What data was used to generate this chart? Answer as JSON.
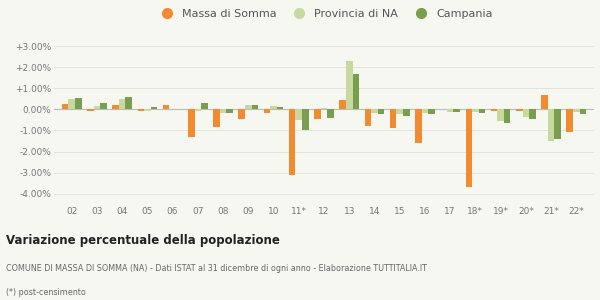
{
  "categories": [
    "02",
    "03",
    "04",
    "05",
    "06",
    "07",
    "08",
    "09",
    "10",
    "11*",
    "12",
    "13",
    "14",
    "15",
    "16",
    "17",
    "18*",
    "19*",
    "20*",
    "21*",
    "22*"
  ],
  "massa": [
    0.25,
    -0.05,
    0.2,
    -0.05,
    0.2,
    -1.3,
    -0.85,
    -0.45,
    -0.15,
    -3.1,
    -0.45,
    0.45,
    -0.8,
    -0.9,
    -1.6,
    0.0,
    -3.7,
    -0.05,
    -0.05,
    0.7,
    -1.05
  ],
  "provincia": [
    0.5,
    0.15,
    0.5,
    -0.05,
    0.0,
    -0.05,
    -0.15,
    0.2,
    0.15,
    -0.5,
    0.05,
    2.3,
    -0.15,
    -0.2,
    -0.15,
    -0.1,
    -0.1,
    -0.55,
    -0.35,
    -1.5,
    -0.1
  ],
  "campania": [
    0.55,
    0.3,
    0.6,
    0.1,
    0.0,
    0.3,
    -0.15,
    0.2,
    0.1,
    -1.0,
    -0.4,
    1.7,
    -0.2,
    -0.3,
    -0.2,
    -0.1,
    -0.15,
    -0.65,
    -0.45,
    -1.4,
    -0.2
  ],
  "color_massa": "#f28b30",
  "color_provincia": "#c8d9a0",
  "color_campania": "#7a9e50",
  "title": "Variazione percentuale della popolazione",
  "subtitle": "COMUNE DI MASSA DI SOMMA (NA) - Dati ISTAT al 31 dicembre di ogni anno - Elaborazione TUTTITALIA.IT",
  "footnote": "(*) post-censimento",
  "legend_labels": [
    "Massa di Somma",
    "Provincia di NA",
    "Campania"
  ],
  "ylim": [
    -4.5,
    3.5
  ],
  "yticks": [
    -4.0,
    -3.0,
    -2.0,
    -1.0,
    0.0,
    1.0,
    2.0,
    3.0
  ],
  "bg_color": "#f7f7f2",
  "bar_width": 0.26
}
